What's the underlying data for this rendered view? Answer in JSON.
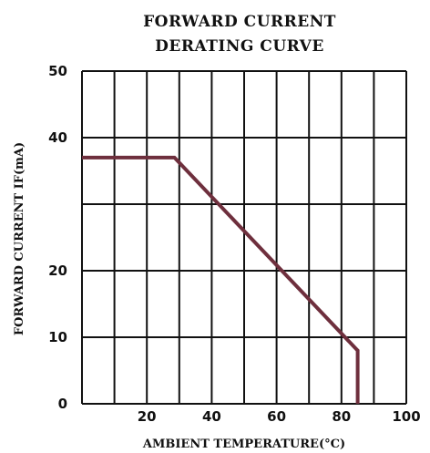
{
  "chart_data": {
    "type": "line",
    "title": [
      "FORWARD CURRENT",
      "DERATING CURVE"
    ],
    "xlabel": "AMBIENT TEMPERATURE(°C)",
    "ylabel": "FORWARD CURRENT IF(mA)",
    "xlim": [
      0,
      100
    ],
    "ylim": [
      0,
      50
    ],
    "x_ticks": [
      20,
      40,
      60,
      80,
      100
    ],
    "y_ticks": [
      0,
      10,
      20,
      40,
      50
    ],
    "x_gridlines": [
      0,
      10,
      20,
      30,
      40,
      50,
      60,
      70,
      80,
      90,
      100
    ],
    "y_gridlines": [
      0,
      10,
      20,
      30,
      40,
      50
    ],
    "grid": true,
    "series": [
      {
        "color": "#6e2f3d",
        "points": [
          {
            "x": 0,
            "y": 37
          },
          {
            "x": 28.5,
            "y": 37
          },
          {
            "x": 85,
            "y": 8
          },
          {
            "x": 85,
            "y": 0
          }
        ]
      }
    ]
  }
}
